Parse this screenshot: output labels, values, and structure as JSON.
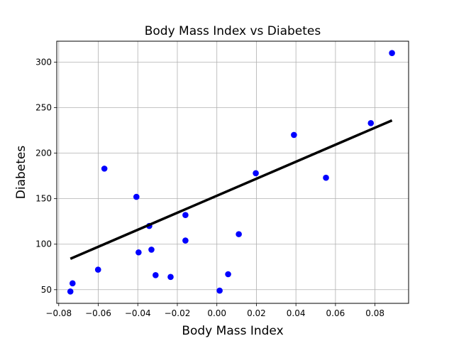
{
  "chart_data": {
    "type": "scatter",
    "title": "Body Mass Index vs Diabetes",
    "xlabel": "Body Mass Index",
    "ylabel": "Diabetes",
    "xlim": [
      -0.081,
      0.097
    ],
    "ylim": [
      35,
      323
    ],
    "xticks": [
      -0.08,
      -0.06,
      -0.04,
      -0.02,
      0.0,
      0.02,
      0.04,
      0.06,
      0.08
    ],
    "xtick_labels": [
      "−0.08",
      "−0.06",
      "−0.04",
      "−0.02",
      "0.00",
      "0.02",
      "0.04",
      "0.06",
      "0.08"
    ],
    "yticks": [
      50,
      100,
      150,
      200,
      250,
      300
    ],
    "ytick_labels": [
      "50",
      "100",
      "150",
      "200",
      "250",
      "300"
    ],
    "grid": true,
    "series": [
      {
        "kind": "scatter",
        "color": "#0000ff",
        "points": [
          {
            "x": 0.0886,
            "y": 310
          },
          {
            "x": 0.0779,
            "y": 233
          },
          {
            "x": 0.039,
            "y": 220
          },
          {
            "x": 0.0552,
            "y": 173
          },
          {
            "x": 0.0197,
            "y": 178
          },
          {
            "x": -0.0569,
            "y": 183
          },
          {
            "x": -0.0407,
            "y": 152
          },
          {
            "x": -0.0159,
            "y": 132
          },
          {
            "x": -0.0342,
            "y": 120
          },
          {
            "x": 0.0111,
            "y": 111
          },
          {
            "x": -0.0159,
            "y": 104
          },
          {
            "x": -0.0331,
            "y": 94
          },
          {
            "x": -0.0396,
            "y": 91
          },
          {
            "x": -0.0601,
            "y": 72
          },
          {
            "x": 0.0057,
            "y": 67
          },
          {
            "x": -0.031,
            "y": 66
          },
          {
            "x": -0.0234,
            "y": 64
          },
          {
            "x": -0.073,
            "y": 57
          },
          {
            "x": -0.0741,
            "y": 48
          },
          {
            "x": 0.0014,
            "y": 49
          }
        ]
      },
      {
        "kind": "line",
        "color": "#000000",
        "points": [
          {
            "x": -0.0741,
            "y": 84
          },
          {
            "x": 0.0886,
            "y": 236
          }
        ]
      }
    ]
  }
}
